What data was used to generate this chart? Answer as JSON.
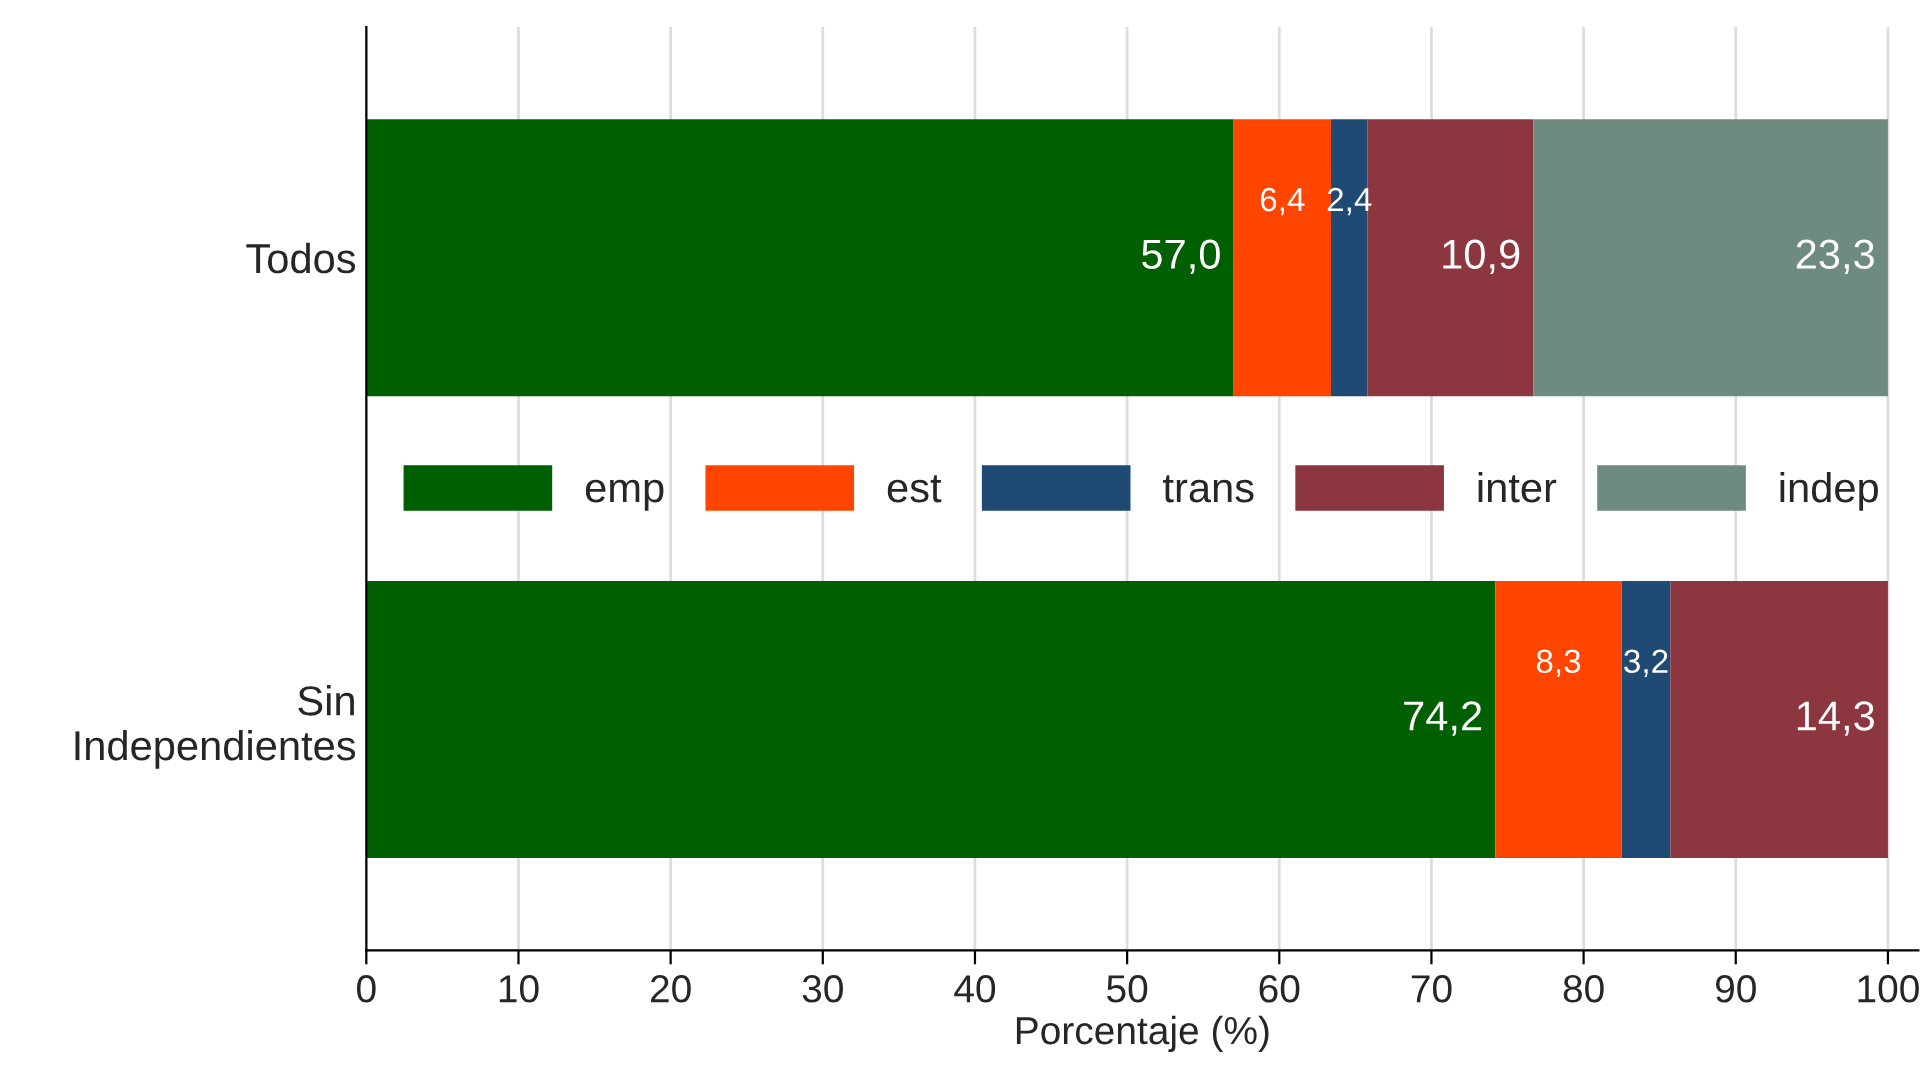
{
  "chart_data": {
    "type": "bar",
    "orientation": "horizontal",
    "stacked": true,
    "categories": [
      "Todos",
      "Sin\nIndependientes"
    ],
    "series": [
      {
        "name": "emp",
        "color": "#005f00",
        "values": [
          57.0,
          74.2
        ],
        "value_labels": [
          "57,0",
          "74,2"
        ]
      },
      {
        "name": "est",
        "color": "#ff4500",
        "values": [
          6.4,
          8.3
        ],
        "value_labels": [
          "6,4",
          "8,3"
        ]
      },
      {
        "name": "trans",
        "color": "#1f4a74",
        "values": [
          2.4,
          3.2
        ],
        "value_labels": [
          "2,4",
          "3,2"
        ]
      },
      {
        "name": "inter",
        "color": "#8c3640",
        "values": [
          10.9,
          14.3
        ],
        "value_labels": [
          "10,9",
          "14,3"
        ]
      },
      {
        "name": "indep",
        "color": "#6e8b80",
        "values": [
          23.3,
          null
        ],
        "value_labels": [
          "23,3",
          null
        ]
      }
    ],
    "xlabel": "Porcentaje (%)",
    "xlim": [
      0,
      102
    ],
    "xticks": [
      0,
      10,
      20,
      30,
      40,
      50,
      60,
      70,
      80,
      90,
      100
    ],
    "grid": "x",
    "legend": "center"
  }
}
